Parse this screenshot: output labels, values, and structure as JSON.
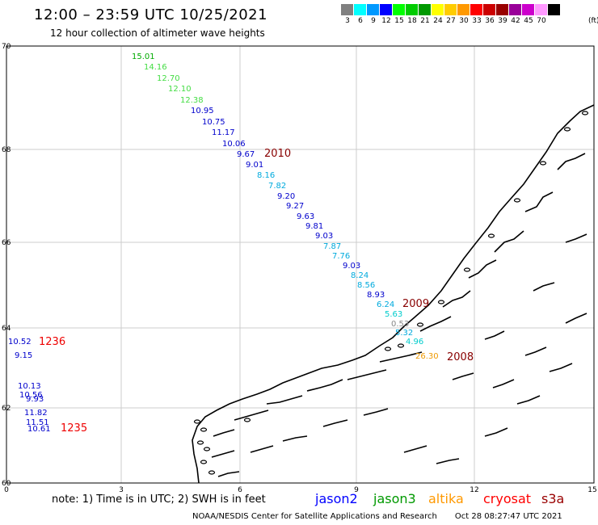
{
  "header": {
    "title": "12:00 – 23:59 UTC 10/25/2021",
    "subtitle": "12 hour collection of altimeter wave heights"
  },
  "color_scale": {
    "unit": "(ft)",
    "colors": [
      "#808080",
      "#00ffff",
      "#0099ff",
      "#0000ff",
      "#00ff00",
      "#00cc00",
      "#009900",
      "#ffff00",
      "#ffcc00",
      "#ff9900",
      "#ff0000",
      "#cc0000",
      "#990000",
      "#990099",
      "#cc00cc",
      "#ff99ff",
      "#000000"
    ],
    "labels": [
      "3",
      "6",
      "9",
      "12",
      "15",
      "18",
      "21",
      "24",
      "27",
      "30",
      "33",
      "36",
      "39",
      "42",
      "45",
      "70"
    ]
  },
  "axes": {
    "lat_ticks": [
      "70",
      "68",
      "66",
      "64",
      "62",
      "60"
    ],
    "lon_ticks": [
      "0",
      "3",
      "6",
      "9",
      "12",
      "15"
    ]
  },
  "measurements": [
    {
      "text": "15.01",
      "color": "#00aa00"
    },
    {
      "text": "14.16",
      "color": "#44dd44"
    },
    {
      "text": "12.70",
      "color": "#44dd44"
    },
    {
      "text": "12.10",
      "color": "#44dd44"
    },
    {
      "text": "12.38",
      "color": "#44dd44"
    },
    {
      "text": "10.95",
      "color": "#0000cc"
    },
    {
      "text": "10.75",
      "color": "#0000cc"
    },
    {
      "text": "11.17",
      "color": "#0000cc"
    },
    {
      "text": "10.06",
      "color": "#0000cc"
    },
    {
      "text": "9.67",
      "color": "#0000cc"
    },
    {
      "text": "9.01",
      "color": "#0000cc"
    },
    {
      "text": "8.16",
      "color": "#00aadd"
    },
    {
      "text": "7.82",
      "color": "#00aadd"
    },
    {
      "text": "9.20",
      "color": "#0000cc"
    },
    {
      "text": "9.27",
      "color": "#0000cc"
    },
    {
      "text": "9.63",
      "color": "#0000cc"
    },
    {
      "text": "9.81",
      "color": "#0000cc"
    },
    {
      "text": "9.03",
      "color": "#0000cc"
    },
    {
      "text": "7.87",
      "color": "#00aadd"
    },
    {
      "text": "7.76",
      "color": "#00aadd"
    },
    {
      "text": "9.03",
      "color": "#0000cc"
    },
    {
      "text": "8.24",
      "color": "#00aadd"
    },
    {
      "text": "8.56",
      "color": "#00aadd"
    },
    {
      "text": "8.93",
      "color": "#0000cc"
    },
    {
      "text": "6.24",
      "color": "#00aadd"
    },
    {
      "text": "5.63",
      "color": "#00cccc"
    },
    {
      "text": "0.53",
      "color": "#888888"
    },
    {
      "text": "5.32",
      "color": "#00aadd"
    },
    {
      "text": "4.96",
      "color": "#00cccc"
    },
    {
      "text": "26.30",
      "color": "#ee9900"
    },
    {
      "text": "10.52",
      "color": "#0000cc"
    },
    {
      "text": "9.15",
      "color": "#0000cc"
    },
    {
      "text": "10.13",
      "color": "#0000cc"
    },
    {
      "text": "10.56",
      "color": "#0000cc"
    },
    {
      "text": "9.93",
      "color": "#0000cc"
    },
    {
      "text": "11.82",
      "color": "#0000cc"
    },
    {
      "text": "11.51",
      "color": "#0000cc"
    },
    {
      "text": "10.61",
      "color": "#0000cc"
    }
  ],
  "pass_labels": [
    {
      "text": "2010",
      "color": "#880000"
    },
    {
      "text": "2009",
      "color": "#880000"
    },
    {
      "text": "2008",
      "color": "#880000"
    },
    {
      "text": "1236",
      "color": "#ee0000"
    },
    {
      "text": "1235",
      "color": "#ee0000"
    }
  ],
  "footer": {
    "note": "note: 1) Time is in UTC; 2) SWH is in feet",
    "legend": [
      {
        "text": "jason2",
        "color": "#0000ff"
      },
      {
        "text": "jason3",
        "color": "#009900"
      },
      {
        "text": "altika",
        "color": "#ff9900"
      },
      {
        "text": "cryosat",
        "color": "#ff0000"
      },
      {
        "text": "s3a",
        "color": "#990000"
      }
    ],
    "credit": "NOAA/NESDIS Center for Satellite Applications and Research",
    "timestamp": "Oct 28 08:27:47 UTC 2021"
  }
}
